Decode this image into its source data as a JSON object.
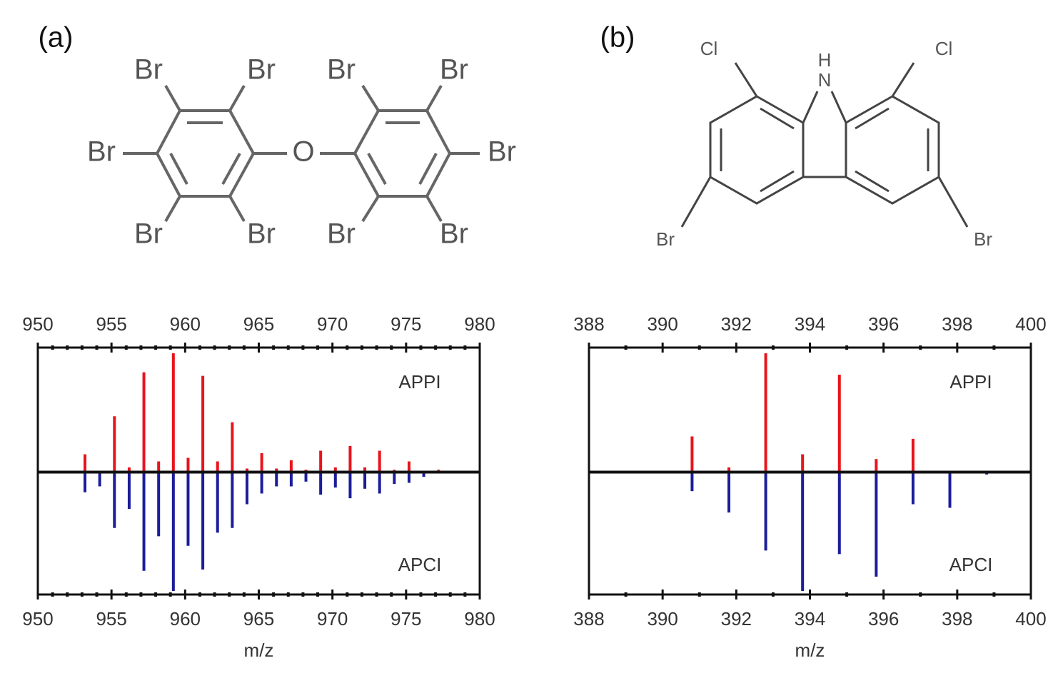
{
  "structures": [
    {
      "label": "(a)",
      "atoms": [
        "Br",
        "Br",
        "Br",
        "Br",
        "Br",
        "O",
        "Br",
        "Br",
        "Br",
        "Br",
        "Br"
      ]
    },
    {
      "label": "(b)",
      "atoms": [
        "Cl",
        "H",
        "N",
        "Cl",
        "Br",
        "Br"
      ]
    }
  ],
  "chart_data": [
    {
      "type": "bar",
      "xlabel": "m/z",
      "xlim": [
        950,
        980
      ],
      "xticks": [
        950,
        955,
        960,
        965,
        970,
        975,
        980
      ],
      "xminor": [
        951,
        952,
        953,
        954,
        956,
        957,
        958,
        959,
        961,
        962,
        963,
        964,
        966,
        967,
        968,
        969,
        971,
        972,
        973,
        974,
        976,
        977,
        978,
        979
      ],
      "ylim": [
        -100,
        100
      ],
      "series": [
        {
          "name": "APPI",
          "color": "#e8141c",
          "x": [
            953.2,
            955.2,
            956.2,
            957.2,
            958.2,
            959.2,
            960.2,
            961.2,
            962.2,
            963.2,
            964.2,
            965.2,
            966.2,
            967.2,
            968.2,
            969.2,
            970.2,
            971.2,
            972.2,
            973.2,
            974.2,
            975.2,
            976.2,
            977.2
          ],
          "values": [
            15,
            47,
            4,
            84,
            9,
            100,
            12,
            81,
            9,
            42,
            3,
            16,
            3,
            10,
            2,
            18,
            4,
            22,
            4,
            18,
            2,
            9,
            1,
            2
          ]
        },
        {
          "name": "APCI",
          "color": "#1c1c9c",
          "x": [
            953.2,
            954.2,
            955.2,
            956.2,
            957.2,
            958.2,
            959.2,
            960.2,
            961.2,
            962.2,
            963.2,
            964.2,
            965.2,
            966.2,
            967.2,
            968.2,
            969.2,
            970.2,
            971.2,
            972.2,
            973.2,
            974.2,
            975.2,
            976.2
          ],
          "values": [
            -17,
            -12,
            -47,
            -31,
            -83,
            -54,
            -100,
            -62,
            -82,
            -51,
            -47,
            -27,
            -18,
            -12,
            -12,
            -8,
            -19,
            -13,
            -22,
            -14,
            -18,
            -10,
            -9,
            -4
          ]
        }
      ]
    },
    {
      "type": "bar",
      "xlabel": "m/z",
      "xlim": [
        388,
        400
      ],
      "xticks": [
        388,
        390,
        392,
        394,
        396,
        398,
        400
      ],
      "xminor": [
        389,
        391,
        393,
        395,
        397,
        399
      ],
      "ylim": [
        -100,
        100
      ],
      "series": [
        {
          "name": "APPI",
          "color": "#e8141c",
          "x": [
            390.8,
            391.8,
            392.8,
            393.8,
            394.8,
            395.8,
            396.8
          ],
          "values": [
            30,
            4,
            100,
            15,
            82,
            11,
            28
          ]
        },
        {
          "name": "APCI",
          "color": "#1c1c9c",
          "x": [
            390.8,
            391.8,
            392.8,
            393.8,
            394.8,
            395.8,
            396.8,
            397.8,
            398.8
          ],
          "values": [
            -16,
            -34,
            -66,
            -100,
            -69,
            -88,
            -27,
            -30,
            -2
          ]
        }
      ]
    }
  ]
}
